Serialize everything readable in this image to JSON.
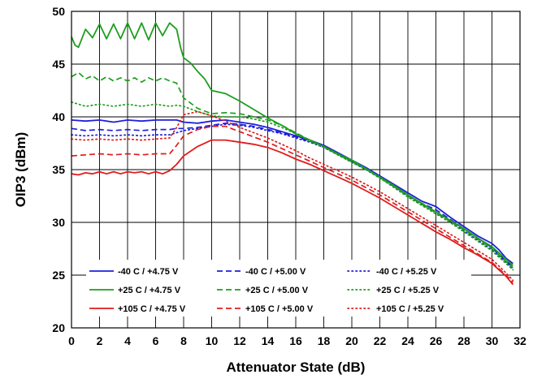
{
  "chart_data": {
    "type": "line",
    "title": "",
    "xlabel": "Attenuator State (dB)",
    "ylabel": "OIP3 (dBm)",
    "xlim": [
      0,
      32
    ],
    "ylim": [
      20,
      50
    ],
    "xticks": [
      "0",
      "2",
      "4",
      "6",
      "8",
      "10",
      "12",
      "14",
      "16",
      "18",
      "20",
      "22",
      "24",
      "26",
      "28",
      "30",
      "32"
    ],
    "yticks": [
      "20",
      "25",
      "30",
      "35",
      "40",
      "45",
      "50"
    ],
    "grid": true,
    "legend_position": "bottom-left inside plot",
    "series": [
      {
        "name": "-40 C / +4.75 V",
        "color": "#1f1fdc",
        "dash": "solid",
        "x": [
          0,
          1,
          2,
          3,
          4,
          5,
          6,
          7,
          7.5,
          8,
          9,
          10,
          11,
          12,
          13,
          14,
          15,
          16,
          17,
          18,
          19,
          20,
          21,
          22,
          23,
          24,
          25,
          26,
          27,
          28,
          29,
          30,
          30.5,
          31,
          31.5
        ],
        "y": [
          39.7,
          39.6,
          39.7,
          39.5,
          39.7,
          39.6,
          39.7,
          39.7,
          39.7,
          39.5,
          39.4,
          39.6,
          39.7,
          39.5,
          39.3,
          39.0,
          38.6,
          38.2,
          37.8,
          37.3,
          36.6,
          35.9,
          35.2,
          34.4,
          33.6,
          32.8,
          32.0,
          31.5,
          30.5,
          29.6,
          28.7,
          28.0,
          27.4,
          26.6,
          26.1
        ]
      },
      {
        "name": "-40 C / +5.00 V",
        "color": "#1f1fdc",
        "dash": "dashed",
        "x": [
          0,
          1,
          2,
          3,
          4,
          5,
          6,
          7,
          7.5,
          8,
          9,
          10,
          11,
          12,
          13,
          14,
          15,
          16,
          17,
          18,
          19,
          20,
          21,
          22,
          23,
          24,
          25,
          26,
          27,
          28,
          29,
          30,
          31,
          31.5
        ],
        "y": [
          38.9,
          38.7,
          38.8,
          38.7,
          38.8,
          38.7,
          38.8,
          38.8,
          38.9,
          38.9,
          39.0,
          39.2,
          39.4,
          39.3,
          39.1,
          38.8,
          38.5,
          38.1,
          37.7,
          37.2,
          36.5,
          35.8,
          35.1,
          34.3,
          33.5,
          32.6,
          31.8,
          31.2,
          30.3,
          29.4,
          28.5,
          27.6,
          26.3,
          25.8
        ]
      },
      {
        "name": "-40 C / +5.25 V",
        "color": "#1f1fdc",
        "dash": "dotted",
        "x": [
          0,
          1,
          2,
          3,
          4,
          5,
          6,
          7,
          7.5,
          8,
          9,
          10,
          11,
          12,
          13,
          14,
          15,
          16,
          17,
          18,
          19,
          20,
          21,
          22,
          23,
          24,
          25,
          26,
          27,
          28,
          29,
          30,
          31,
          31.5
        ],
        "y": [
          38.3,
          38.2,
          38.3,
          38.2,
          38.3,
          38.2,
          38.3,
          38.3,
          38.5,
          38.7,
          38.9,
          39.1,
          39.3,
          39.2,
          39.0,
          38.7,
          38.4,
          38.0,
          37.6,
          37.1,
          36.4,
          35.7,
          35.0,
          34.2,
          33.4,
          32.5,
          31.7,
          31.0,
          30.1,
          29.2,
          28.3,
          27.4,
          26.2,
          25.6
        ]
      },
      {
        "name": "+25 C / +4.75 V",
        "color": "#1e9e1e",
        "dash": "solid",
        "x": [
          0,
          0.25,
          0.5,
          1,
          1.5,
          2,
          2.5,
          3,
          3.5,
          4,
          4.5,
          5,
          5.5,
          6,
          6.5,
          7,
          7.5,
          7.8,
          8,
          8.5,
          9,
          9.5,
          10,
          11,
          12,
          13,
          14,
          15,
          16,
          17,
          18,
          19,
          20,
          21,
          22,
          23,
          24,
          25,
          26,
          27,
          28,
          29,
          30,
          31,
          31.5
        ],
        "y": [
          47.6,
          46.8,
          46.6,
          48.3,
          47.5,
          48.8,
          47.4,
          48.8,
          47.4,
          48.9,
          47.4,
          48.9,
          47.3,
          48.9,
          47.7,
          48.9,
          48.3,
          46.5,
          45.6,
          45.1,
          44.3,
          43.6,
          42.5,
          42.2,
          41.5,
          40.7,
          39.9,
          39.2,
          38.4,
          37.8,
          37.2,
          36.5,
          35.9,
          35.1,
          34.3,
          33.5,
          32.6,
          31.8,
          31.0,
          30.2,
          29.4,
          28.5,
          27.7,
          26.5,
          25.9
        ]
      },
      {
        "name": "+25 C / +5.00 V",
        "color": "#1e9e1e",
        "dash": "dashed",
        "x": [
          0,
          0.5,
          1,
          1.5,
          2,
          2.5,
          3,
          3.5,
          4,
          4.5,
          5,
          5.5,
          6,
          6.5,
          7,
          7.5,
          8,
          9,
          10,
          11,
          12,
          13,
          14,
          15,
          16,
          17,
          18,
          19,
          20,
          21,
          22,
          23,
          24,
          25,
          26,
          27,
          28,
          29,
          30,
          31,
          31.5
        ],
        "y": [
          43.8,
          44.2,
          43.6,
          43.9,
          43.4,
          43.8,
          43.4,
          43.7,
          43.4,
          43.7,
          43.3,
          43.7,
          43.4,
          43.7,
          43.4,
          43.2,
          41.8,
          40.8,
          40.3,
          40.4,
          40.3,
          40.0,
          39.7,
          39.2,
          38.5,
          37.8,
          37.2,
          36.5,
          35.8,
          35.1,
          34.3,
          33.4,
          32.5,
          31.7,
          30.9,
          30.1,
          29.3,
          28.4,
          27.5,
          26.3,
          25.7
        ]
      },
      {
        "name": "+25 C / +5.25 V",
        "color": "#1e9e1e",
        "dash": "dotted",
        "x": [
          0,
          1,
          2,
          3,
          4,
          5,
          6,
          7,
          7.5,
          8,
          9,
          10,
          11,
          12,
          13,
          14,
          15,
          16,
          17,
          18,
          19,
          20,
          21,
          22,
          23,
          24,
          25,
          26,
          27,
          28,
          29,
          30,
          31,
          31.5
        ],
        "y": [
          41.4,
          41.0,
          41.2,
          41.0,
          41.2,
          41.0,
          41.2,
          41.0,
          41.1,
          41.0,
          40.5,
          40.1,
          40.0,
          40.0,
          39.8,
          39.5,
          39.0,
          38.4,
          37.7,
          37.1,
          36.4,
          35.7,
          35.0,
          34.2,
          33.3,
          32.4,
          31.6,
          30.8,
          30.0,
          29.1,
          28.2,
          27.3,
          26.1,
          25.5
        ]
      },
      {
        "name": "+105 C / +4.75 V",
        "color": "#e01c1c",
        "dash": "solid",
        "x": [
          0,
          0.5,
          1,
          1.5,
          2,
          2.5,
          3,
          3.5,
          4,
          4.5,
          5,
          5.5,
          6,
          6.5,
          7,
          7.5,
          8,
          9,
          10,
          11,
          12,
          13,
          14,
          15,
          16,
          17,
          18,
          19,
          20,
          21,
          22,
          23,
          24,
          25,
          26,
          27,
          28,
          29,
          30,
          31,
          31.5
        ],
        "y": [
          34.6,
          34.5,
          34.7,
          34.6,
          34.8,
          34.6,
          34.8,
          34.6,
          34.8,
          34.7,
          34.8,
          34.6,
          34.8,
          34.6,
          34.9,
          35.5,
          36.3,
          37.2,
          37.8,
          37.8,
          37.6,
          37.4,
          37.1,
          36.6,
          36.0,
          35.5,
          34.9,
          34.3,
          33.7,
          33.0,
          32.3,
          31.5,
          30.7,
          29.9,
          29.1,
          28.4,
          27.6,
          26.9,
          26.1,
          24.9,
          24.1
        ]
      },
      {
        "name": "+105 C / +5.00 V",
        "color": "#e01c1c",
        "dash": "dashed",
        "x": [
          0,
          1,
          2,
          3,
          4,
          5,
          6,
          7,
          7.5,
          8,
          9,
          10,
          11,
          12,
          13,
          14,
          15,
          16,
          17,
          18,
          19,
          20,
          21,
          22,
          23,
          24,
          25,
          26,
          27,
          28,
          29,
          30,
          31,
          31.5
        ],
        "y": [
          36.3,
          36.4,
          36.5,
          36.4,
          36.5,
          36.4,
          36.5,
          36.5,
          37.3,
          38.2,
          38.8,
          39.1,
          39.1,
          38.6,
          38.1,
          37.6,
          37.0,
          36.4,
          35.8,
          35.2,
          34.6,
          34.0,
          33.3,
          32.6,
          31.8,
          31.0,
          30.2,
          29.4,
          28.6,
          27.8,
          27.0,
          26.2,
          25.0,
          24.3
        ]
      },
      {
        "name": "+105 C / +5.25 V",
        "color": "#e01c1c",
        "dash": "dotted",
        "x": [
          0,
          1,
          2,
          3,
          4,
          5,
          6,
          7,
          7.5,
          8,
          9,
          10,
          11,
          12,
          13,
          14,
          15,
          16,
          17,
          18,
          19,
          20,
          21,
          22,
          23,
          24,
          25,
          26,
          27,
          28,
          29,
          30,
          31,
          31.5
        ],
        "y": [
          37.9,
          37.8,
          37.9,
          37.8,
          37.9,
          37.8,
          37.9,
          38.0,
          39.0,
          40.2,
          40.5,
          40.1,
          39.6,
          39.0,
          38.5,
          38.0,
          37.4,
          36.8,
          36.1,
          35.5,
          34.9,
          34.3,
          33.6,
          32.9,
          32.1,
          31.3,
          30.5,
          29.7,
          28.9,
          28.1,
          27.3,
          26.5,
          25.2,
          24.5
        ]
      }
    ]
  }
}
